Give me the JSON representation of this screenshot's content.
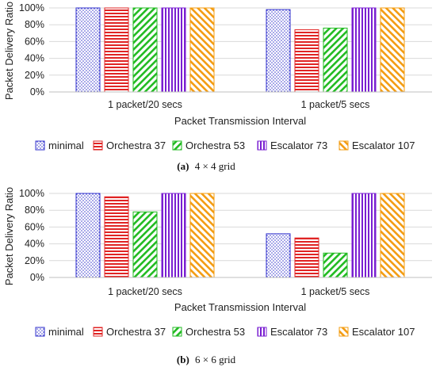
{
  "chart_data": [
    {
      "type": "bar",
      "caption_label": "(a)",
      "caption_text": "4 × 4 grid",
      "xlabel": "Packet Transmission Interval",
      "ylabel": "Packet Delivery Ratio",
      "ylim": [
        0,
        100
      ],
      "yticks": [
        0,
        20,
        40,
        60,
        80,
        100
      ],
      "ytick_labels": [
        "0%",
        "20%",
        "40%",
        "60%",
        "80%",
        "100%"
      ],
      "categories": [
        "1 packet/20 secs",
        "1 packet/5 secs"
      ],
      "series": [
        {
          "name": "minimal",
          "values": [
            100,
            98
          ]
        },
        {
          "name": "Orchestra 37",
          "values": [
            100,
            74
          ]
        },
        {
          "name": "Orchestra 53",
          "values": [
            100,
            76
          ]
        },
        {
          "name": "Escalator 73",
          "values": [
            100,
            100
          ]
        },
        {
          "name": "Escalator 107",
          "values": [
            100,
            100
          ]
        }
      ],
      "legend_position": "bottom"
    },
    {
      "type": "bar",
      "caption_label": "(b)",
      "caption_text": "6 × 6 grid",
      "xlabel": "Packet Transmission Interval",
      "ylabel": "Packet Delivery Ratio",
      "ylim": [
        0,
        100
      ],
      "yticks": [
        0,
        20,
        40,
        60,
        80,
        100
      ],
      "ytick_labels": [
        "0%",
        "20%",
        "40%",
        "60%",
        "80%",
        "100%"
      ],
      "categories": [
        "1 packet/20 secs",
        "1 packet/5 secs"
      ],
      "series": [
        {
          "name": "minimal",
          "values": [
            100,
            52
          ]
        },
        {
          "name": "Orchestra 37",
          "values": [
            96,
            47
          ]
        },
        {
          "name": "Orchestra 53",
          "values": [
            78,
            29
          ]
        },
        {
          "name": "Escalator 73",
          "values": [
            100,
            100
          ]
        },
        {
          "name": "Escalator 107",
          "values": [
            100,
            100
          ]
        }
      ],
      "legend_position": "bottom"
    }
  ],
  "series_styles": [
    {
      "pattern": "dots",
      "color": "#3333cc"
    },
    {
      "pattern": "horizontal",
      "color": "#e02424"
    },
    {
      "pattern": "diagonal-forward",
      "color": "#22bb22"
    },
    {
      "pattern": "vertical",
      "color": "#7a1fd1"
    },
    {
      "pattern": "diagonal-backward",
      "color": "#f39c12"
    }
  ]
}
